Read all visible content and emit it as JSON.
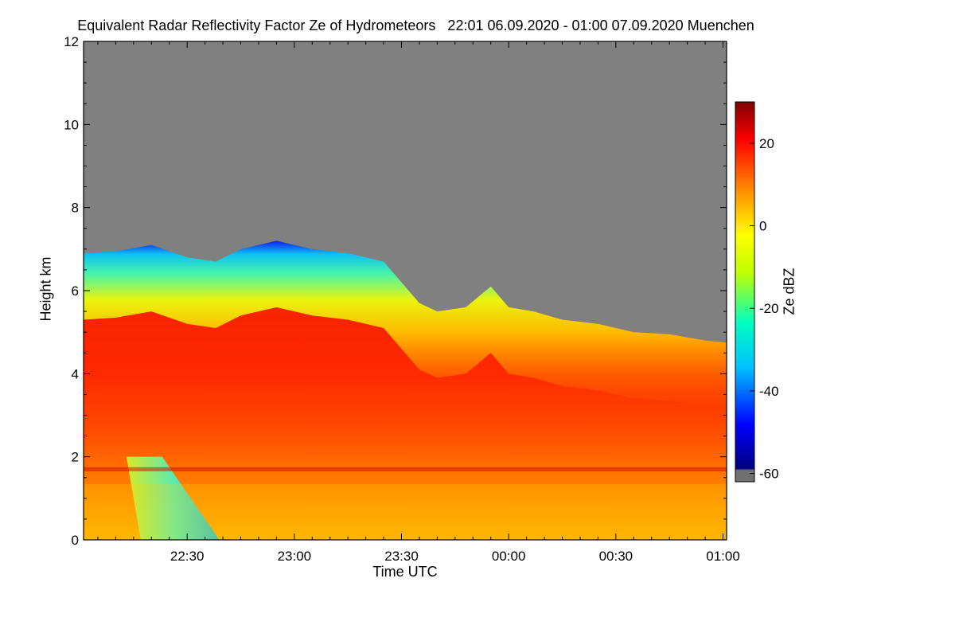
{
  "chart_data": {
    "type": "heatmap",
    "title": "Equivalent Radar Reflectivity Factor Ze of Hydrometeors   22:01 06.09.2020 - 01:00 07.09.2020 Muenchen",
    "xlabel": "Time UTC",
    "ylabel": "Height km",
    "colorbar_label": "Ze dBZ",
    "x_tick_labels": [
      "22:30",
      "23:00",
      "23:30",
      "00:00",
      "00:30",
      "01:00"
    ],
    "x_tick_minutes": [
      30,
      60,
      90,
      120,
      150,
      180
    ],
    "xlim_minutes": [
      1,
      181
    ],
    "y_ticks": [
      0,
      2,
      4,
      6,
      8,
      10,
      12
    ],
    "ylim": [
      0,
      12
    ],
    "colorbar_ticks": [
      20,
      0,
      -20,
      -40,
      -60
    ],
    "colorbar_range": [
      -62,
      30
    ],
    "no_data_color": "#808080",
    "echo_top_km": [
      [
        1,
        6.9
      ],
      [
        10,
        6.95
      ],
      [
        20,
        7.1
      ],
      [
        30,
        6.8
      ],
      [
        38,
        6.7
      ],
      [
        45,
        7.0
      ],
      [
        55,
        7.2
      ],
      [
        65,
        7.0
      ],
      [
        75,
        6.9
      ],
      [
        85,
        6.7
      ],
      [
        90,
        6.2
      ],
      [
        95,
        5.7
      ],
      [
        100,
        5.5
      ],
      [
        108,
        5.6
      ],
      [
        115,
        6.1
      ],
      [
        120,
        5.6
      ],
      [
        127,
        5.5
      ],
      [
        135,
        5.3
      ],
      [
        145,
        5.2
      ],
      [
        155,
        5.0
      ],
      [
        165,
        4.95
      ],
      [
        175,
        4.8
      ],
      [
        181,
        4.75
      ]
    ],
    "melting_layer_km": 1.7,
    "low_reflectivity_fallstreak": {
      "start_minute": 13,
      "end_minute": 39,
      "max_height_km": 2.0,
      "ze_dbz": -20
    }
  }
}
